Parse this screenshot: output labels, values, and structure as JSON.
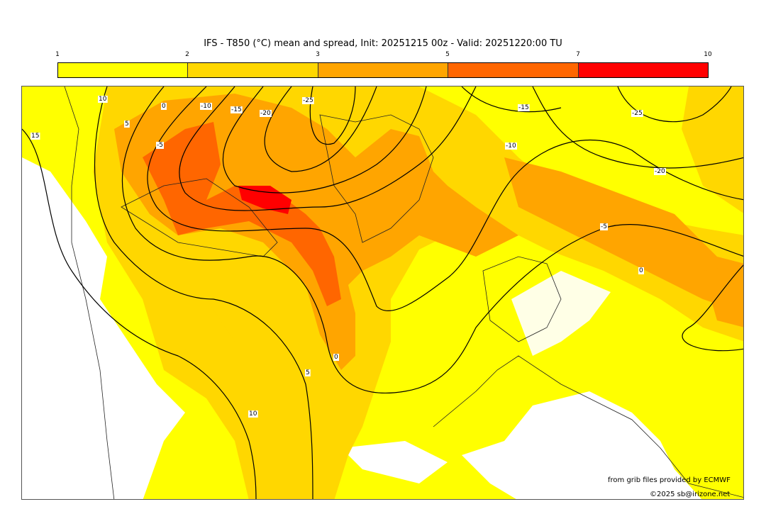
{
  "title": "IFS - T850 (°C) mean and spread, Init: 20251215 00z - Valid: 20251220:00 TU",
  "colorbar": {
    "ticks": [
      "1",
      "2",
      "3",
      "5",
      "7",
      "10"
    ],
    "colors": [
      "#ffff00",
      "#ffd700",
      "#ffa500",
      "#ff6600",
      "#ff0000"
    ]
  },
  "contour_labels": [
    "10",
    "5",
    "0",
    "-5",
    "-10",
    "-15",
    "-20",
    "-25",
    "15",
    "-15",
    "-10",
    "-20",
    "-25",
    "-5",
    "0",
    "0",
    "5",
    "10"
  ],
  "credits": {
    "source": "from grib files provided by ECMWF",
    "copyright": "©2025 sb@irizone.net"
  }
}
